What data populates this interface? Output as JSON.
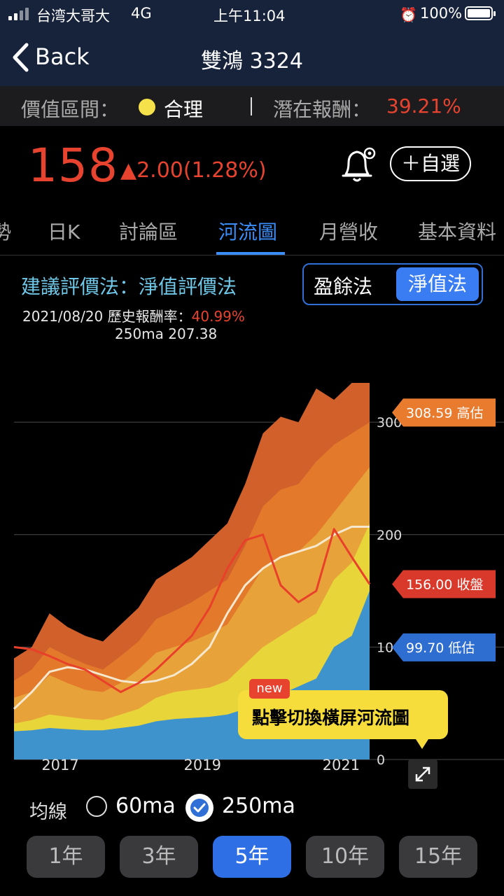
{
  "status_bar": {
    "carrier": "台湾大哥大",
    "network": "4G",
    "time": "上午11:04",
    "battery": "100%"
  },
  "nav": {
    "back_label": "Back",
    "title": "雙鴻 3324"
  },
  "valuation": {
    "range_label": "價值區間：",
    "range_value": "合理",
    "range_color": "#f5e14a",
    "potential_label": "潛在報酬：",
    "potential_value": "39.21%"
  },
  "quote": {
    "price": "158",
    "change": "▲2.00(1.28%)",
    "favorite_label": "＋自選"
  },
  "tabs": [
    {
      "label": "勢"
    },
    {
      "label": "日K"
    },
    {
      "label": "討論區"
    },
    {
      "label": "河流圖",
      "active": true
    },
    {
      "label": "月營收"
    },
    {
      "label": "基本資料"
    }
  ],
  "method": {
    "title": "建議評價法：淨值評價法",
    "options": [
      "盈餘法",
      "淨值法"
    ],
    "selected": "淨值法",
    "date": "2021/08/20",
    "hist_label": "歷史報酬率：",
    "hist_value": "40.99%",
    "ma_label": "250ma 207.38"
  },
  "chart_data": {
    "type": "area",
    "x_ticks": [
      "2017",
      "2019",
      "2021"
    ],
    "y_ticks": [
      0,
      100,
      200,
      300
    ],
    "ylim": [
      0,
      330
    ],
    "colors": {
      "band1": "#3f93cc",
      "band2": "#e7d53a",
      "band3": "#e8a23a",
      "band4": "#e37a2b",
      "band5": "#d2602a",
      "close": "#e8402b",
      "ma250": "#f5e8cf"
    },
    "x": [
      0,
      0.05,
      0.1,
      0.15,
      0.2,
      0.25,
      0.3,
      0.35,
      0.4,
      0.45,
      0.5,
      0.55,
      0.6,
      0.65,
      0.7,
      0.75,
      0.8,
      0.85,
      0.9,
      0.95,
      1
    ],
    "bands": [
      {
        "name": "band1",
        "values": [
          25,
          26,
          28,
          27,
          26,
          26,
          28,
          30,
          34,
          36,
          37,
          38,
          40,
          45,
          52,
          58,
          65,
          72,
          100,
          110,
          150
        ]
      },
      {
        "name": "band2",
        "values": [
          32,
          35,
          40,
          38,
          36,
          35,
          40,
          45,
          55,
          60,
          62,
          64,
          70,
          85,
          100,
          110,
          120,
          130,
          160,
          175,
          210
        ]
      },
      {
        "name": "band3",
        "values": [
          55,
          60,
          75,
          68,
          62,
          60,
          68,
          80,
          95,
          100,
          105,
          112,
          120,
          145,
          170,
          180,
          185,
          200,
          220,
          240,
          260
        ]
      },
      {
        "name": "band4",
        "values": [
          70,
          80,
          100,
          92,
          85,
          80,
          92,
          105,
          125,
          132,
          140,
          150,
          160,
          190,
          225,
          240,
          245,
          265,
          280,
          290,
          300
        ]
      },
      {
        "name": "band5",
        "values": [
          90,
          100,
          130,
          118,
          110,
          105,
          120,
          135,
          160,
          170,
          180,
          195,
          210,
          245,
          290,
          305,
          300,
          330,
          320,
          335,
          335
        ]
      }
    ],
    "close": [
      100,
      98,
      92,
      85,
      80,
      70,
      60,
      68,
      80,
      95,
      110,
      135,
      170,
      195,
      200,
      155,
      140,
      150,
      205,
      180,
      156
    ],
    "ma250": [
      45,
      60,
      78,
      82,
      80,
      75,
      70,
      68,
      70,
      75,
      85,
      100,
      130,
      155,
      170,
      180,
      185,
      190,
      200,
      207,
      207
    ],
    "markers": [
      {
        "value": 308.59,
        "label": "308.59 高估",
        "color": "#e87b2d"
      },
      {
        "value": 156.0,
        "label": "156.00 收盤",
        "color": "#d9392a"
      },
      {
        "value": 99.7,
        "label": "99.70 低估",
        "color": "#2f6ed1"
      }
    ]
  },
  "tooltip": {
    "badge": "new",
    "text": "點擊切換橫屏河流圖"
  },
  "ma_options": {
    "label": "均線",
    "ma60": "60ma",
    "ma250": "250ma",
    "selected": "250ma"
  },
  "periods": [
    {
      "label": "1年"
    },
    {
      "label": "3年"
    },
    {
      "label": "5年",
      "active": true
    },
    {
      "label": "10年"
    },
    {
      "label": "15年"
    }
  ]
}
